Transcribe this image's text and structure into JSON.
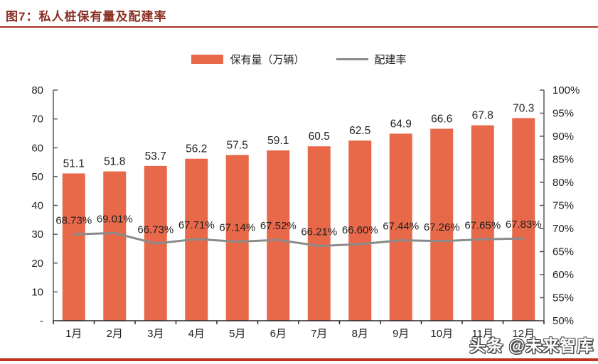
{
  "header": {
    "title": "图7：私人桩保有量及配建率"
  },
  "legend": {
    "items": [
      {
        "label": "保有量（万辆）",
        "type": "bar",
        "color": "#E8694A"
      },
      {
        "label": "配建率",
        "type": "line",
        "color": "#8A8A8A"
      }
    ]
  },
  "chart_data": {
    "type": "combo",
    "title": "私人桩保有量及配建率",
    "categories": [
      "1月",
      "2月",
      "3月",
      "4月",
      "5月",
      "6月",
      "7月",
      "8月",
      "9月",
      "10月",
      "11月",
      "12月"
    ],
    "series": [
      {
        "name": "保有量（万辆）",
        "type": "bar",
        "axis": "left",
        "color": "#E8694A",
        "values": [
          51.1,
          51.8,
          53.7,
          56.2,
          57.5,
          59.1,
          60.5,
          62.5,
          64.9,
          66.6,
          67.8,
          70.3
        ],
        "labels": [
          "51.1",
          "51.8",
          "53.7",
          "56.2",
          "57.5",
          "59.1",
          "60.5",
          "62.5",
          "64.9",
          "66.6",
          "67.8",
          "70.3"
        ]
      },
      {
        "name": "配建率",
        "type": "line",
        "axis": "right",
        "color": "#8A8A8A",
        "values": [
          68.73,
          69.01,
          66.73,
          67.71,
          67.14,
          67.52,
          66.21,
          66.6,
          67.44,
          67.26,
          67.65,
          67.83
        ],
        "labels": [
          "68.73%",
          "69.01%",
          "66.73%",
          "67.71%",
          "67.14%",
          "67.52%",
          "66.21%",
          "66.60%",
          "67.44%",
          "67.26%",
          "67.65%",
          "67.83%"
        ]
      }
    ],
    "left_axis": {
      "min": 0,
      "max": 80,
      "tick_values": [
        80,
        70,
        60,
        50,
        40,
        30,
        20,
        10,
        0
      ],
      "tick_labels": [
        "80",
        "70",
        "60",
        "50",
        "40",
        "30",
        "20",
        "10",
        "-"
      ]
    },
    "right_axis": {
      "min": 50,
      "max": 100,
      "tick_values": [
        100,
        95,
        90,
        85,
        80,
        75,
        70,
        65,
        60,
        55,
        50
      ],
      "tick_labels": [
        "100%",
        "95%",
        "90%",
        "85%",
        "80%",
        "75%",
        "70%",
        "65%",
        "60%",
        "55%",
        "50%"
      ]
    },
    "grid": false,
    "legend_position": "top"
  },
  "watermark": {
    "text": "头条 @未来智库"
  },
  "colors": {
    "bar": "#E8694A",
    "line": "#8A8A8A",
    "title": "#8A2E22",
    "top_rule": "#A93226",
    "bottom_rule": "#C03522",
    "axis": "#595959",
    "bottom_axis": "#262626",
    "label": "#1f1f1f"
  }
}
